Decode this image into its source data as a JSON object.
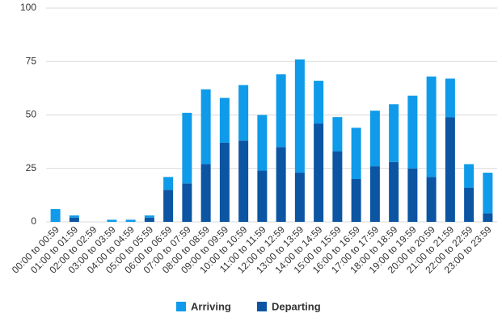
{
  "chart_data": {
    "type": "stacked_bar",
    "categories": [
      "00:00 to 00:59",
      "01:00 to 01:59",
      "02:00 to 02:59",
      "03:00 to 03:59",
      "04:00 to 04:59",
      "05:00 to 05:59",
      "06:00 to 06:59",
      "07:00 to 07:59",
      "08:00 to 08:59",
      "09:00 to 09:59",
      "10:00 to 10:59",
      "11:00 to 11:59",
      "12:00 to 12:59",
      "13:00 to 13:59",
      "14:00 to 14:59",
      "15:00 to 15:59",
      "16:00 to 16:59",
      "17:00 to 17:59",
      "18:00 to 18:59",
      "19:00 to 19:59",
      "20:00 to 20:59",
      "21:00 to 21:59",
      "22:00 to 22:59",
      "23:00 to 23:59"
    ],
    "series": [
      {
        "name": "Arriving",
        "color": "#0f9bea",
        "values": [
          6,
          1,
          0,
          1,
          1,
          1,
          6,
          33,
          35,
          21,
          26,
          26,
          34,
          53,
          20,
          16,
          24,
          26,
          27,
          34,
          47,
          18,
          11,
          19
        ]
      },
      {
        "name": "Departing",
        "color": "#0b55a3",
        "values": [
          0,
          2,
          0,
          0,
          0,
          2,
          15,
          18,
          27,
          37,
          38,
          24,
          35,
          23,
          46,
          33,
          20,
          26,
          28,
          25,
          21,
          49,
          16,
          4
        ]
      }
    ],
    "ylim": [
      0,
      100
    ],
    "yticks": [
      0,
      25,
      50,
      75,
      100
    ],
    "grid": true,
    "legend": "bottom"
  }
}
